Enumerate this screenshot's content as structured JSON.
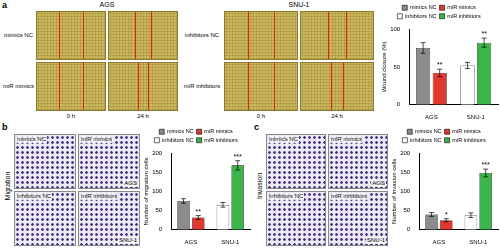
{
  "figure": {
    "panels": [
      {
        "letter": "a",
        "groups": [
          {
            "title": "AGS",
            "rows": [
              "mimics NC",
              "miR mimics"
            ],
            "columns": [
              "0 h",
              "24 h"
            ]
          },
          {
            "title": "SNU-1",
            "rows": [
              "inhibitors NC",
              "miR inhibitors"
            ],
            "columns": [
              "0 h",
              "24 h"
            ]
          }
        ]
      },
      {
        "letter": "b",
        "side_label": "Migration",
        "cells": [
          [
            "mimics NC",
            "miR mimics"
          ],
          [
            "inhibitors NC",
            "miR inhibitors"
          ]
        ],
        "row_groups": [
          "AGS",
          "SNU-1"
        ]
      },
      {
        "letter": "c",
        "side_label": "Invasion",
        "cells": [
          [
            "mimics NC",
            "miR mimics"
          ],
          [
            "inhibitors NC",
            "miR inhibitors"
          ]
        ],
        "row_groups": [
          "AGS",
          "SNU-1"
        ]
      }
    ]
  },
  "chart_data": [
    {
      "type": "bar",
      "categories": [
        "AGS",
        "SNU-1"
      ],
      "y_label": "Wound closure (%)",
      "ylim": [
        0,
        100
      ],
      "yticks": [
        0,
        50,
        100
      ],
      "grid": false,
      "legend": "top",
      "series": [
        {
          "name": "mimics NC",
          "color": "#8c8c8c",
          "values": [
            75,
            null
          ],
          "errors": [
            7,
            null
          ]
        },
        {
          "name": "miR mimics",
          "color": "#e0392f",
          "values": [
            42,
            null
          ],
          "errors": [
            5,
            null
          ],
          "annotations": [
            "**",
            null
          ]
        },
        {
          "name": "inhibitors NC",
          "color": "#ffffff",
          "values": [
            null,
            52
          ],
          "errors": [
            null,
            4
          ]
        },
        {
          "name": "miR inhibitors",
          "color": "#3bb54a",
          "values": [
            null,
            82
          ],
          "errors": [
            null,
            6
          ],
          "annotations": [
            null,
            "**"
          ]
        }
      ]
    },
    {
      "type": "bar",
      "categories": [
        "AGS",
        "SNU-1"
      ],
      "y_label": "Number of migration cells",
      "ylim": [
        0,
        200
      ],
      "yticks": [
        0,
        50,
        100,
        150,
        200
      ],
      "grid": false,
      "legend": "top",
      "series": [
        {
          "name": "mimics NC",
          "color": "#8c8c8c",
          "values": [
            75,
            null
          ],
          "errors": [
            6,
            null
          ]
        },
        {
          "name": "miR mimics",
          "color": "#e0392f",
          "values": [
            32,
            null
          ],
          "errors": [
            5,
            null
          ],
          "annotations": [
            "**",
            null
          ]
        },
        {
          "name": "inhibitors NC",
          "color": "#ffffff",
          "values": [
            null,
            65
          ],
          "errors": [
            null,
            6
          ]
        },
        {
          "name": "miR inhibitors",
          "color": "#3bb54a",
          "values": [
            null,
            168
          ],
          "errors": [
            null,
            12
          ],
          "annotations": [
            null,
            "***"
          ]
        }
      ]
    },
    {
      "type": "bar",
      "categories": [
        "AGS",
        "SNU-1"
      ],
      "y_label": "Number of invasion cells",
      "ylim": [
        0,
        200
      ],
      "yticks": [
        0,
        50,
        100,
        150,
        200
      ],
      "grid": false,
      "legend": "top",
      "series": [
        {
          "name": "mimics NC",
          "color": "#8c8c8c",
          "values": [
            40,
            null
          ],
          "errors": [
            5,
            null
          ]
        },
        {
          "name": "miR mimics",
          "color": "#e0392f",
          "values": [
            25,
            null
          ],
          "errors": [
            4,
            null
          ],
          "annotations": [
            "*",
            null
          ]
        },
        {
          "name": "inhibitors NC",
          "color": "#ffffff",
          "values": [
            null,
            38
          ],
          "errors": [
            null,
            6
          ]
        },
        {
          "name": "miR inhibitors",
          "color": "#3bb54a",
          "values": [
            null,
            148
          ],
          "errors": [
            null,
            10
          ],
          "annotations": [
            null,
            "***"
          ]
        }
      ]
    }
  ]
}
